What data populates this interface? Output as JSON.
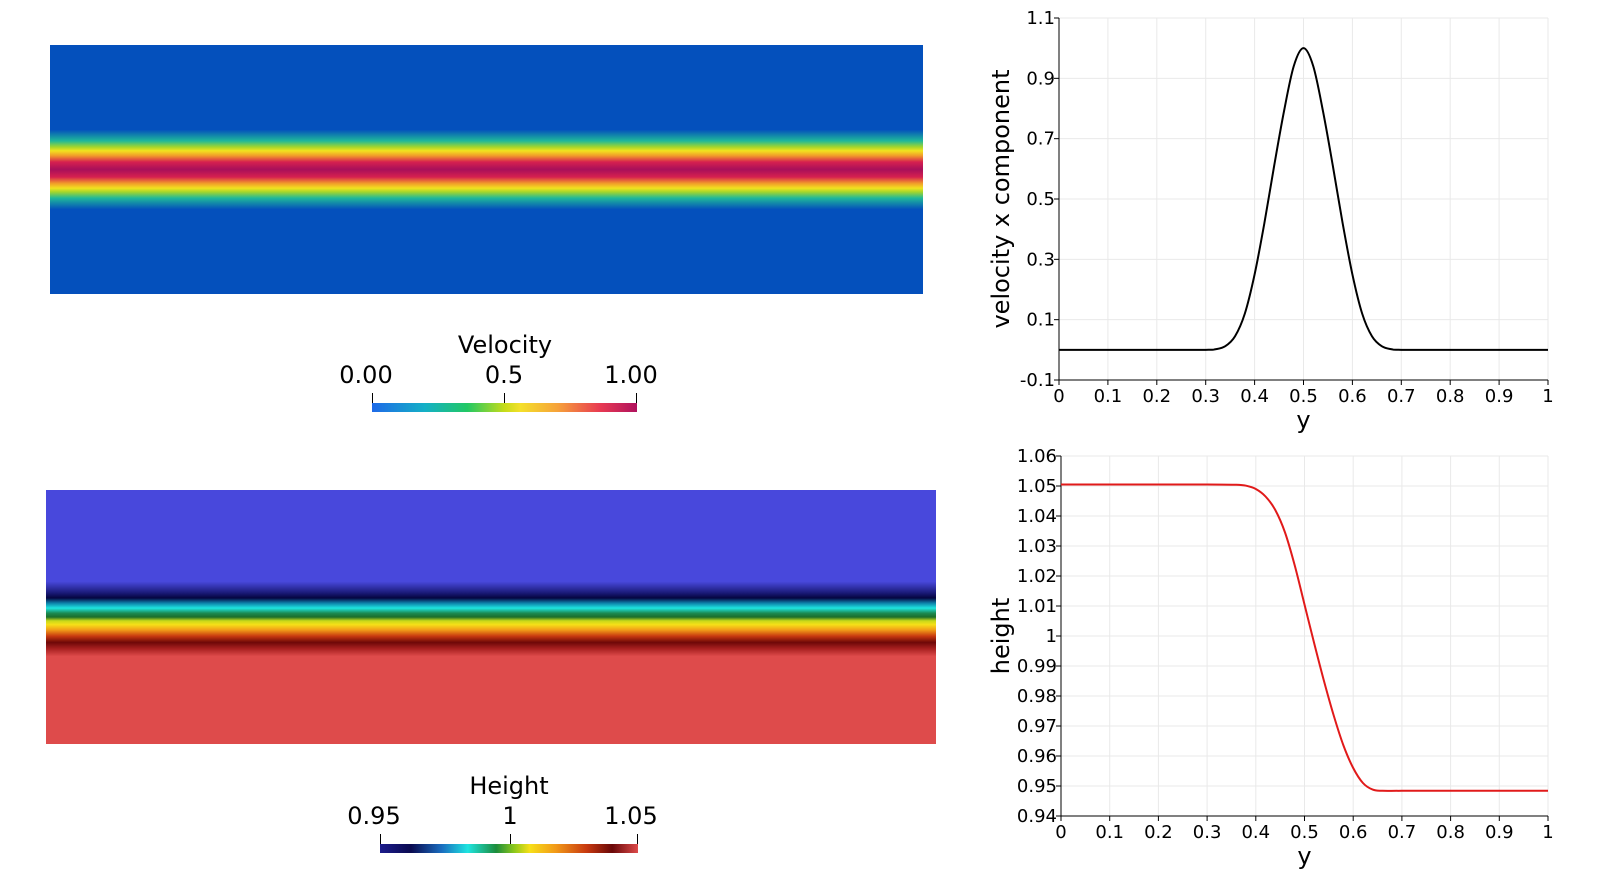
{
  "colorbars": {
    "velocity": {
      "title": "Velocity",
      "ticks": [
        "0.00",
        "0.5",
        "1.00"
      ]
    },
    "height": {
      "title": "Height",
      "ticks": [
        "0.95",
        "1",
        "1.05"
      ]
    }
  },
  "colors": {
    "velocity_background": "#0450bc",
    "height_top": "#4848dc",
    "height_bottom": "#de4b4b",
    "velocity_line": "#000000",
    "height_line": "#e11a1a",
    "grid": "#e9e9e9"
  },
  "chart_data": [
    {
      "type": "line",
      "xlabel": "y",
      "ylabel": "velocity x component",
      "xlim": [
        0,
        1
      ],
      "ylim": [
        -0.1,
        1.1
      ],
      "x_ticks": [
        "0",
        "0.1",
        "0.2",
        "0.3",
        "0.4",
        "0.5",
        "0.6",
        "0.7",
        "0.8",
        "0.9",
        "1"
      ],
      "y_ticks": [
        "-0.1",
        "0.1",
        "0.3",
        "0.5",
        "0.7",
        "0.9",
        "1.1"
      ],
      "grid": true,
      "series": [
        {
          "x": [
            0,
            0.1,
            0.2,
            0.3,
            0.32,
            0.34,
            0.36,
            0.38,
            0.4,
            0.42,
            0.44,
            0.46,
            0.48,
            0.5,
            0.52,
            0.54,
            0.56,
            0.58,
            0.6,
            0.62,
            0.64,
            0.66,
            0.68,
            0.7,
            0.8,
            0.9,
            1
          ],
          "y": [
            0,
            0,
            0,
            0,
            0.002,
            0.012,
            0.045,
            0.12,
            0.25,
            0.42,
            0.61,
            0.79,
            0.94,
            1.0,
            0.94,
            0.79,
            0.61,
            0.42,
            0.25,
            0.12,
            0.045,
            0.012,
            0.002,
            0,
            0,
            0,
            0
          ]
        }
      ]
    },
    {
      "type": "line",
      "xlabel": "y",
      "ylabel": "height",
      "xlim": [
        0,
        1
      ],
      "ylim": [
        0.94,
        1.06
      ],
      "x_ticks": [
        "0",
        "0.1",
        "0.2",
        "0.3",
        "0.4",
        "0.5",
        "0.6",
        "0.7",
        "0.8",
        "0.9",
        "1"
      ],
      "y_ticks": [
        "0.94",
        "0.95",
        "0.96",
        "0.97",
        "0.98",
        "0.99",
        "1",
        "1.01",
        "1.02",
        "1.03",
        "1.04",
        "1.05",
        "1.06"
      ],
      "grid": true,
      "series": [
        {
          "x": [
            0,
            0.1,
            0.2,
            0.3,
            0.36,
            0.38,
            0.4,
            0.42,
            0.44,
            0.46,
            0.48,
            0.5,
            0.52,
            0.54,
            0.56,
            0.58,
            0.6,
            0.62,
            0.64,
            0.66,
            0.7,
            0.8,
            0.9,
            1
          ],
          "y": [
            1.0505,
            1.0505,
            1.0505,
            1.0505,
            1.0504,
            1.0501,
            1.049,
            1.0465,
            1.042,
            1.0345,
            1.0235,
            1.0105,
            0.9975,
            0.985,
            0.9735,
            0.9635,
            0.956,
            0.951,
            0.9488,
            0.9484,
            0.9484,
            0.9484,
            0.9484,
            0.9484
          ]
        }
      ]
    }
  ]
}
